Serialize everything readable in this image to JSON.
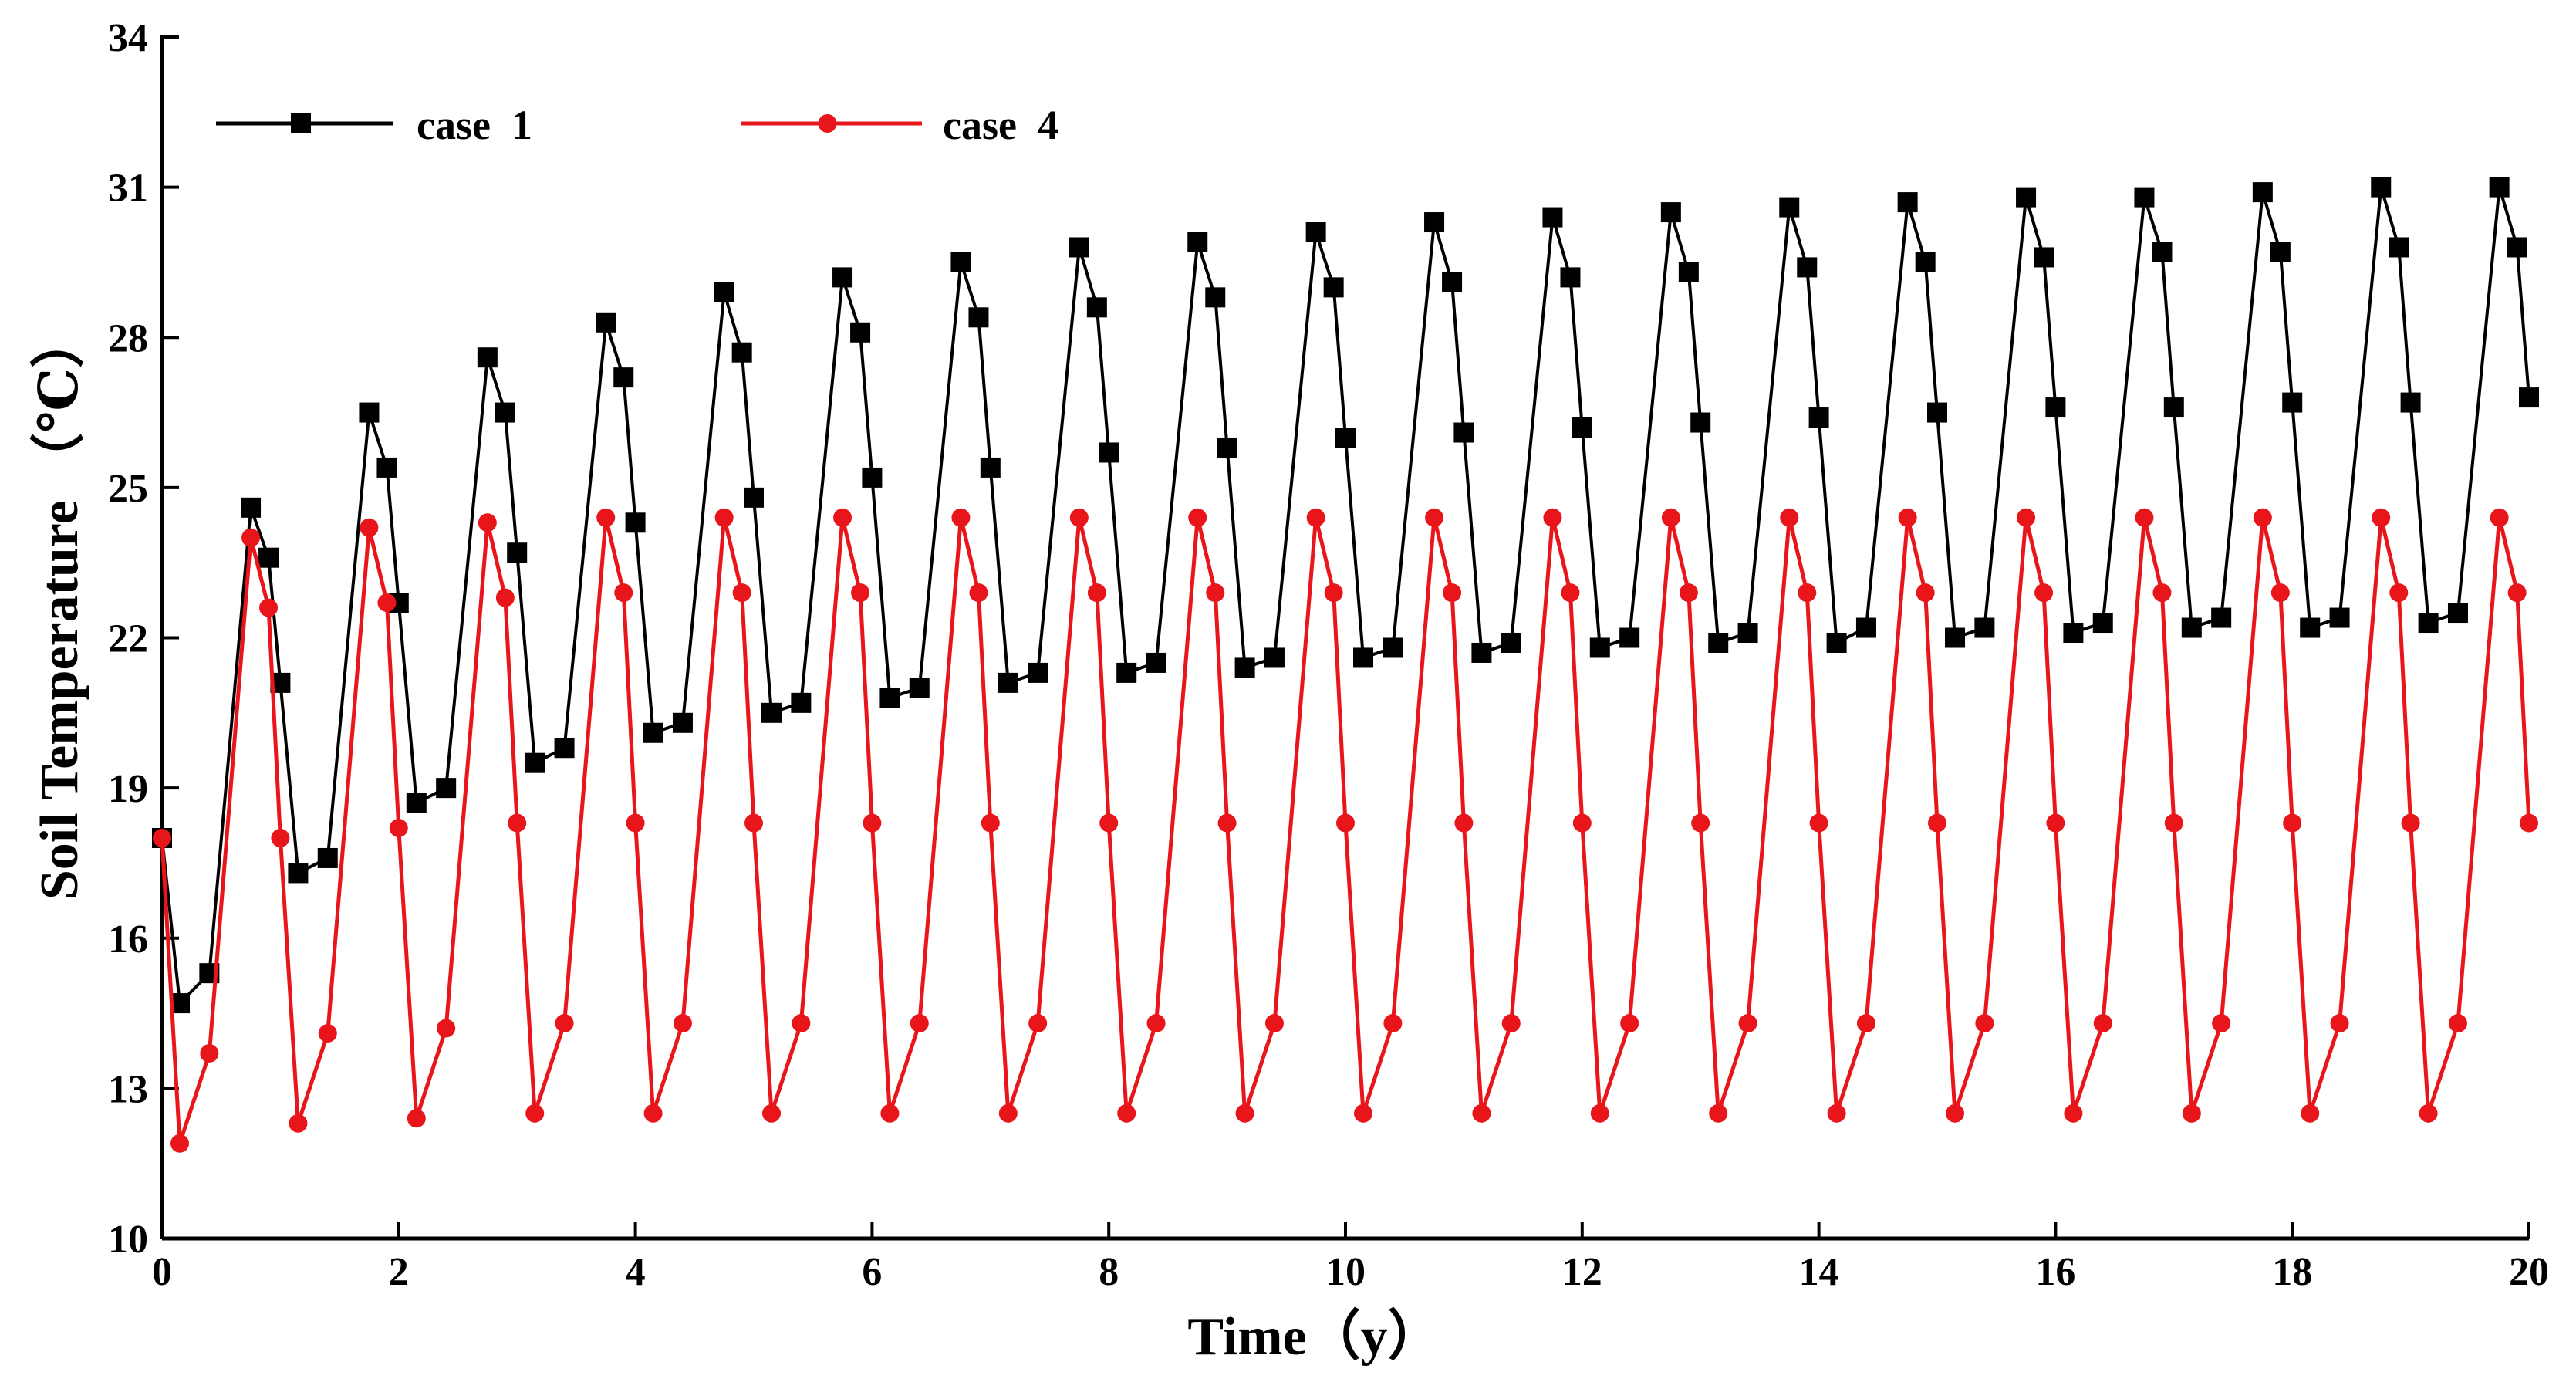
{
  "chart_data": {
    "type": "line",
    "title": "",
    "xlabel": "Time（y）",
    "ylabel": "Soil Temperature （℃）",
    "xlim": [
      0,
      20
    ],
    "ylim": [
      10,
      34
    ],
    "xticks": [
      "0",
      "2",
      "4",
      "6",
      "8",
      "10",
      "12",
      "14",
      "16",
      "18",
      "20"
    ],
    "yticks": [
      "10",
      "13",
      "16",
      "19",
      "22",
      "25",
      "28",
      "31",
      "34"
    ],
    "grid": false,
    "legend_position": "top-left",
    "series": [
      {
        "name": "case  1",
        "color": "#000000",
        "marker": "square",
        "x": [
          0,
          0.15,
          0.4,
          0.75,
          0.9,
          1.0,
          1.15,
          1.4,
          1.75,
          1.9,
          2.0,
          2.15,
          2.4,
          2.75,
          2.9,
          3.0,
          3.15,
          3.4,
          3.75,
          3.9,
          4.0,
          4.15,
          4.4,
          4.75,
          4.9,
          5.0,
          5.15,
          5.4,
          5.75,
          5.9,
          6.0,
          6.15,
          6.4,
          6.75,
          6.9,
          7.0,
          7.15,
          7.4,
          7.75,
          7.9,
          8.0,
          8.15,
          8.4,
          8.75,
          8.9,
          9.0,
          9.15,
          9.4,
          9.75,
          9.9,
          10.0,
          10.15,
          10.4,
          10.75,
          10.9,
          11.0,
          11.15,
          11.4,
          11.75,
          11.9,
          12.0,
          12.15,
          12.4,
          12.75,
          12.9,
          13.0,
          13.15,
          13.4,
          13.75,
          13.9,
          14.0,
          14.15,
          14.4,
          14.75,
          14.9,
          15.0,
          15.15,
          15.4,
          15.75,
          15.9,
          16.0,
          16.15,
          16.4,
          16.75,
          16.9,
          17.0,
          17.15,
          17.4,
          17.75,
          17.9,
          18.0,
          18.15,
          18.4,
          18.75,
          18.9,
          19.0,
          19.15,
          19.4,
          19.75,
          19.9,
          20.0
        ],
        "y": [
          18.0,
          14.7,
          15.3,
          24.6,
          23.6,
          21.1,
          17.3,
          17.6,
          26.5,
          25.4,
          22.7,
          18.7,
          19.0,
          27.6,
          26.5,
          23.7,
          19.5,
          19.8,
          28.3,
          27.2,
          24.3,
          20.1,
          20.3,
          28.9,
          27.7,
          24.8,
          20.5,
          20.7,
          29.2,
          28.1,
          25.2,
          20.8,
          21.0,
          29.5,
          28.4,
          25.4,
          21.1,
          21.3,
          29.8,
          28.6,
          25.7,
          21.3,
          21.5,
          29.9,
          28.8,
          25.8,
          21.4,
          21.6,
          30.1,
          29.0,
          26.0,
          21.6,
          21.8,
          30.3,
          29.1,
          26.1,
          21.7,
          21.9,
          30.4,
          29.2,
          26.2,
          21.8,
          22.0,
          30.5,
          29.3,
          26.3,
          21.9,
          22.1,
          30.6,
          29.4,
          26.4,
          21.9,
          22.2,
          30.7,
          29.5,
          26.5,
          22.0,
          22.2,
          30.8,
          29.6,
          26.6,
          22.1,
          22.3,
          30.8,
          29.7,
          26.6,
          22.2,
          22.4,
          30.9,
          29.7,
          26.7,
          22.2,
          22.4,
          31.0,
          29.8,
          26.7,
          22.3,
          22.5,
          31.0,
          29.8,
          26.8
        ]
      },
      {
        "name": "case  4",
        "color": "#e8161b",
        "marker": "circle",
        "x": [
          0,
          0.15,
          0.4,
          0.75,
          0.9,
          1.0,
          1.15,
          1.4,
          1.75,
          1.9,
          2.0,
          2.15,
          2.4,
          2.75,
          2.9,
          3.0,
          3.15,
          3.4,
          3.75,
          3.9,
          4.0,
          4.15,
          4.4,
          4.75,
          4.9,
          5.0,
          5.15,
          5.4,
          5.75,
          5.9,
          6.0,
          6.15,
          6.4,
          6.75,
          6.9,
          7.0,
          7.15,
          7.4,
          7.75,
          7.9,
          8.0,
          8.15,
          8.4,
          8.75,
          8.9,
          9.0,
          9.15,
          9.4,
          9.75,
          9.9,
          10.0,
          10.15,
          10.4,
          10.75,
          10.9,
          11.0,
          11.15,
          11.4,
          11.75,
          11.9,
          12.0,
          12.15,
          12.4,
          12.75,
          12.9,
          13.0,
          13.15,
          13.4,
          13.75,
          13.9,
          14.0,
          14.15,
          14.4,
          14.75,
          14.9,
          15.0,
          15.15,
          15.4,
          15.75,
          15.9,
          16.0,
          16.15,
          16.4,
          16.75,
          16.9,
          17.0,
          17.15,
          17.4,
          17.75,
          17.9,
          18.0,
          18.15,
          18.4,
          18.75,
          18.9,
          19.0,
          19.15,
          19.4,
          19.75,
          19.9,
          20.0
        ],
        "y": [
          18.0,
          11.9,
          13.7,
          24.0,
          22.6,
          18.0,
          12.3,
          14.1,
          24.2,
          22.7,
          18.2,
          12.4,
          14.2,
          24.3,
          22.8,
          18.3,
          12.5,
          14.3,
          24.4,
          22.9,
          18.3,
          12.5,
          14.3,
          24.4,
          22.9,
          18.3,
          12.5,
          14.3,
          24.4,
          22.9,
          18.3,
          12.5,
          14.3,
          24.4,
          22.9,
          18.3,
          12.5,
          14.3,
          24.4,
          22.9,
          18.3,
          12.5,
          14.3,
          24.4,
          22.9,
          18.3,
          12.5,
          14.3,
          24.4,
          22.9,
          18.3,
          12.5,
          14.3,
          24.4,
          22.9,
          18.3,
          12.5,
          14.3,
          24.4,
          22.9,
          18.3,
          12.5,
          14.3,
          24.4,
          22.9,
          18.3,
          12.5,
          14.3,
          24.4,
          22.9,
          18.3,
          12.5,
          14.3,
          24.4,
          22.9,
          18.3,
          12.5,
          14.3,
          24.4,
          22.9,
          18.3,
          12.5,
          14.3,
          24.4,
          22.9,
          18.3,
          12.5,
          14.3,
          24.4,
          22.9,
          18.3,
          12.5,
          14.3,
          24.4,
          22.9,
          18.3,
          12.5,
          14.3,
          24.4,
          22.9,
          18.3
        ]
      }
    ]
  }
}
